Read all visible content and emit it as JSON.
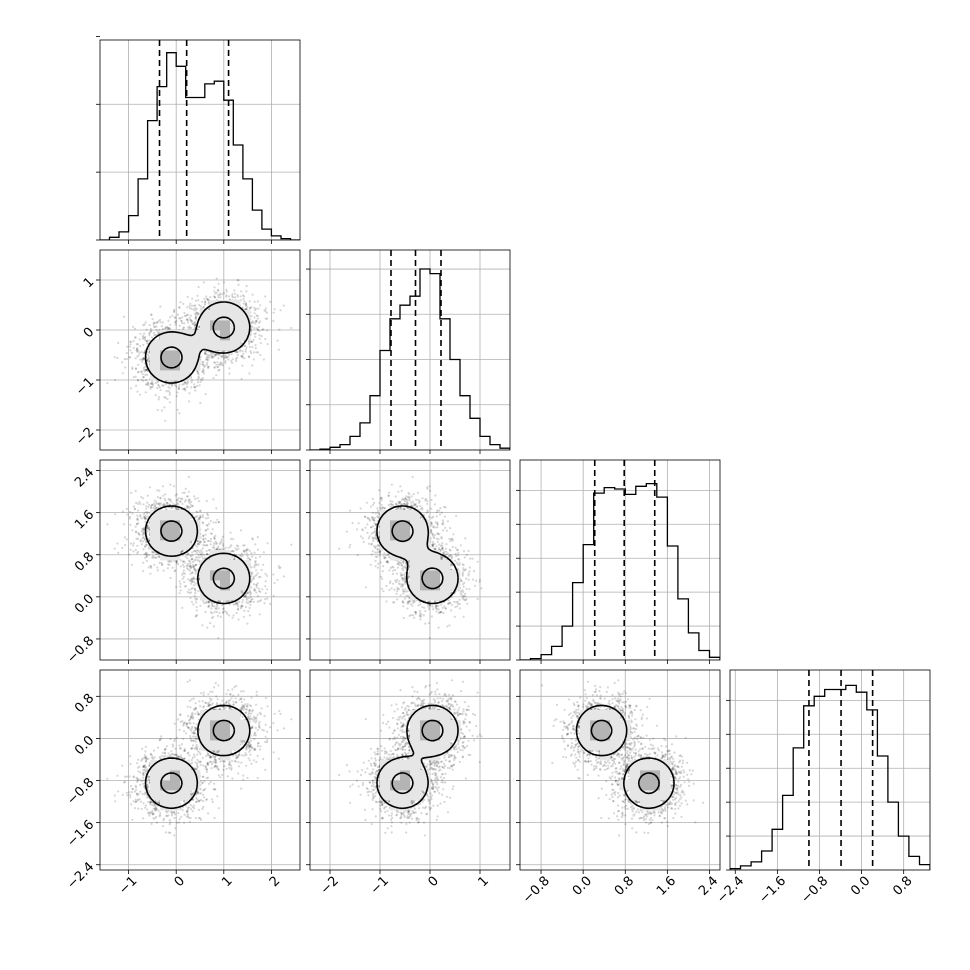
{
  "chart_data": {
    "type": "corner",
    "parameters": [
      {
        "range": [
          -1.6,
          2.6
        ],
        "ticks": [
          -1,
          0,
          1,
          2
        ],
        "tick_labels": [
          "−1",
          "0",
          "1",
          "2"
        ],
        "quantiles": [
          -0.35,
          0.22,
          1.1
        ],
        "histogram": {
          "edges": [
            -1.6,
            -1.4,
            -1.2,
            -1.0,
            -0.8,
            -0.6,
            -0.4,
            -0.2,
            0.0,
            0.2,
            0.4,
            0.6,
            0.8,
            1.0,
            1.2,
            1.4,
            1.6,
            1.8,
            2.0,
            2.2,
            2.4,
            2.6
          ],
          "counts": [
            0,
            2,
            6,
            18,
            45,
            88,
            113,
            138,
            128,
            105,
            105,
            115,
            117,
            103,
            70,
            45,
            22,
            8,
            3,
            1,
            0
          ],
          "ylim": [
            0,
            140
          ],
          "yticks": [
            0,
            50,
            100,
            150
          ]
        }
      },
      {
        "range": [
          -2.4,
          1.6
        ],
        "ticks": [
          -2,
          -1,
          0,
          1
        ],
        "tick_labels": [
          "−2",
          "−1",
          "0",
          "1"
        ],
        "quantiles": [
          -0.78,
          -0.29,
          0.22
        ],
        "histogram": {
          "edges": [
            -2.4,
            -2.2,
            -2.0,
            -1.8,
            -1.6,
            -1.4,
            -1.2,
            -1.0,
            -0.8,
            -0.6,
            -0.4,
            -0.2,
            0.0,
            0.2,
            0.4,
            0.6,
            0.8,
            1.0,
            1.2,
            1.4,
            1.6
          ],
          "counts": [
            0,
            1,
            3,
            6,
            15,
            30,
            60,
            110,
            145,
            160,
            170,
            200,
            195,
            145,
            100,
            60,
            35,
            15,
            6,
            2
          ],
          "ylim": [
            0,
            210
          ],
          "yticks": [
            0,
            50,
            100,
            150,
            200
          ]
        }
      },
      {
        "range": [
          -1.2,
          2.6
        ],
        "ticks": [
          -0.8,
          0.0,
          0.8,
          1.6,
          2.4
        ],
        "tick_labels": [
          "−0.8",
          "0.0",
          "0.8",
          "1.6",
          "2.4"
        ],
        "quantiles": [
          0.22,
          0.78,
          1.36
        ],
        "histogram": {
          "edges": [
            -1.2,
            -1.0,
            -0.8,
            -0.6,
            -0.4,
            -0.2,
            0.0,
            0.2,
            0.4,
            0.6,
            0.8,
            1.0,
            1.2,
            1.4,
            1.6,
            1.8,
            2.0,
            2.2,
            2.4,
            2.6
          ],
          "counts": [
            0,
            1,
            4,
            10,
            25,
            57,
            85,
            123,
            127,
            126,
            122,
            128,
            130,
            120,
            84,
            45,
            20,
            7,
            2
          ],
          "ylim": [
            0,
            140
          ],
          "yticks": [
            0,
            25,
            50,
            75,
            100,
            125
          ]
        }
      },
      {
        "range": [
          -2.5,
          1.3
        ],
        "ticks": [
          -2.4,
          -1.6,
          -0.8,
          0.0,
          0.8
        ],
        "tick_labels": [
          "−2.4",
          "−1.6",
          "−0.8",
          "0.0",
          "0.8"
        ],
        "quantiles": [
          -1.0,
          -0.39,
          0.21
        ],
        "histogram": {
          "edges": [
            -2.5,
            -2.3,
            -2.1,
            -1.9,
            -1.7,
            -1.5,
            -1.3,
            -1.1,
            -0.9,
            -0.7,
            -0.5,
            -0.3,
            -0.1,
            0.1,
            0.3,
            0.5,
            0.7,
            0.9,
            1.1,
            1.3
          ],
          "counts": [
            1,
            3,
            6,
            14,
            30,
            55,
            90,
            121,
            128,
            133,
            133,
            136,
            131,
            118,
            84,
            50,
            25,
            10,
            4
          ],
          "ylim": [
            0,
            140
          ],
          "yticks": [
            0,
            25,
            50,
            75,
            100,
            125
          ]
        }
      }
    ],
    "mixture": {
      "weights": [
        0.5,
        0.5
      ],
      "means": [
        [
          -0.1,
          -0.55,
          1.25,
          -0.85
        ],
        [
          1.0,
          0.05,
          0.35,
          0.15
        ]
      ],
      "sigma": [
        0.32,
        0.3,
        0.28,
        0.28
      ],
      "marginal_sigma": [
        0.55,
        0.47,
        0.5,
        0.5
      ]
    },
    "contour_levels": [
      0.118,
      0.393,
      0.675,
      0.864
    ],
    "scatter_points": 2500
  }
}
